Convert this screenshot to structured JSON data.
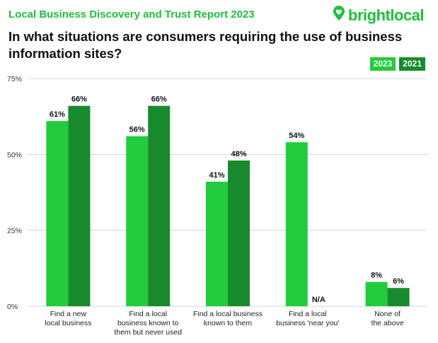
{
  "header": {
    "report_title": "Local Business Discovery and Trust Report 2023",
    "brand": "brightlocal"
  },
  "colors": {
    "brand_green": "#1fbf3a",
    "series_2023": "#22cc3c",
    "series_2021": "#178a2e",
    "grid": "#d4d4d4",
    "text": "#111111"
  },
  "chart_data": {
    "type": "bar",
    "title": "In what situations are consumers requiring the use of business information sites?",
    "xlabel": "",
    "ylabel": "",
    "ylim": [
      0,
      75
    ],
    "yticks": [
      0,
      25,
      50,
      75
    ],
    "ytick_labels": [
      "0%",
      "25%",
      "50%",
      "75%"
    ],
    "grid": true,
    "legend_position": "top-right",
    "categories": [
      [
        "Find a new",
        "local business"
      ],
      [
        "Find a local",
        "business known to",
        "them but never used"
      ],
      [
        "Find a local business",
        "known to them"
      ],
      [
        "Find a local",
        "business 'near you'"
      ],
      [
        "None of",
        "the above"
      ]
    ],
    "series": [
      {
        "name": "2023",
        "values": [
          61,
          56,
          41,
          54,
          8
        ],
        "labels": [
          "61%",
          "56%",
          "41%",
          "54%",
          "8%"
        ]
      },
      {
        "name": "2021",
        "values": [
          66,
          66,
          48,
          null,
          6
        ],
        "labels": [
          "66%",
          "66%",
          "48%",
          "N/A",
          "6%"
        ]
      }
    ]
  }
}
